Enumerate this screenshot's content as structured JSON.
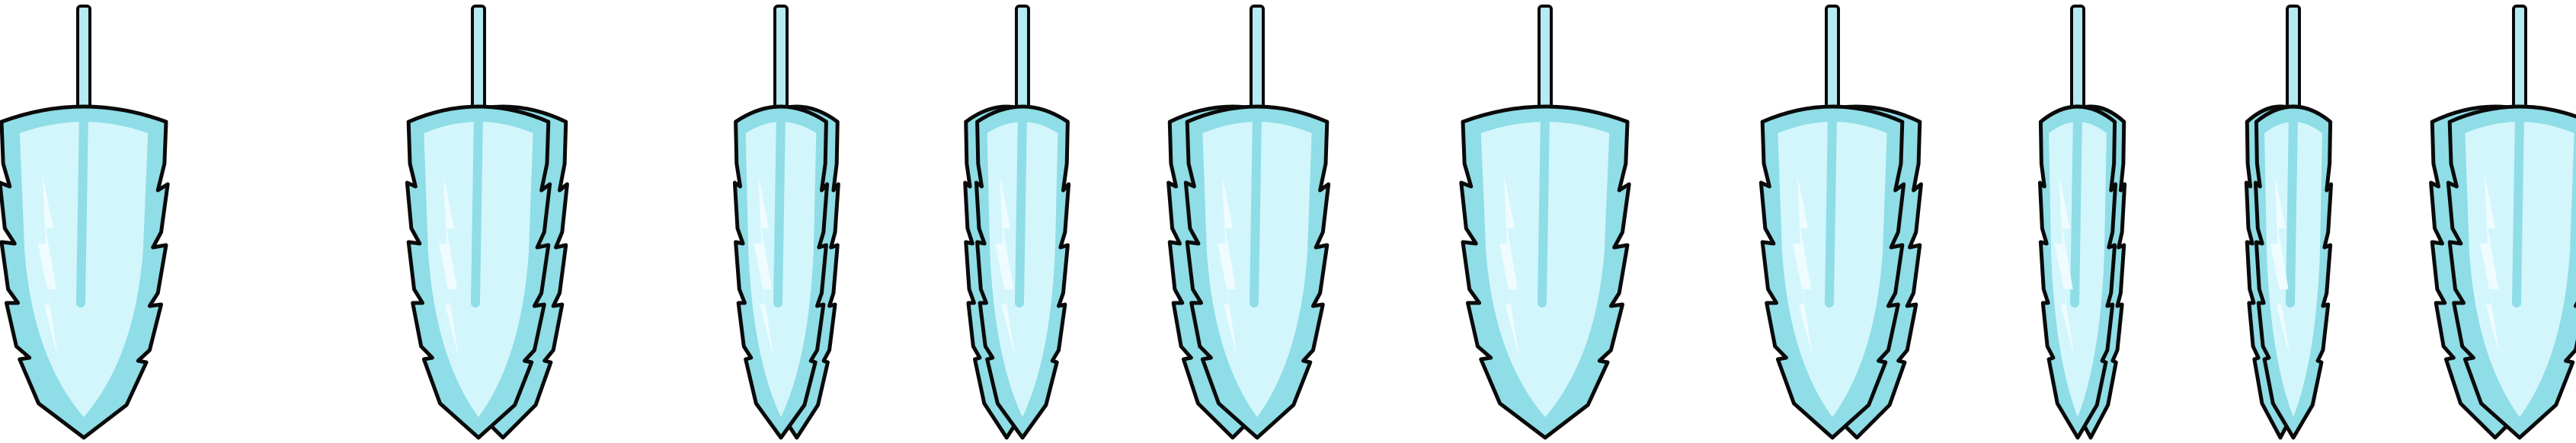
{
  "sprite_sheet": {
    "frame_count": 10,
    "palette": {
      "outline": "#0a0a0a",
      "fill": "#d2f6fc",
      "shade": "#8fdde6",
      "highlight": "#f2fdff",
      "stem": "#b5eaf2"
    },
    "frames": [
      {
        "name": "frame-1",
        "icon": "feather-icon",
        "view": "front",
        "spread": 1.0
      },
      {
        "name": "frame-2",
        "icon": "feather-icon",
        "view": "turn-right-1",
        "spread": 0.85
      },
      {
        "name": "frame-3",
        "icon": "feather-icon",
        "view": "turn-right-2",
        "spread": 0.55
      },
      {
        "name": "frame-4",
        "icon": "feather-icon",
        "view": "turn-left-2",
        "spread": 0.55
      },
      {
        "name": "frame-5",
        "icon": "feather-icon",
        "view": "turn-left-1",
        "spread": 0.85
      },
      {
        "name": "frame-6",
        "icon": "feather-icon",
        "view": "front",
        "spread": 1.0
      },
      {
        "name": "frame-7",
        "icon": "feather-icon",
        "view": "turn-right-1",
        "spread": 0.85
      },
      {
        "name": "frame-8",
        "icon": "feather-icon",
        "view": "edge-right",
        "spread": 0.45
      },
      {
        "name": "frame-9",
        "icon": "feather-icon",
        "view": "edge-left",
        "spread": 0.45
      },
      {
        "name": "frame-10",
        "icon": "feather-icon",
        "view": "turn-left-1",
        "spread": 0.85
      }
    ]
  }
}
